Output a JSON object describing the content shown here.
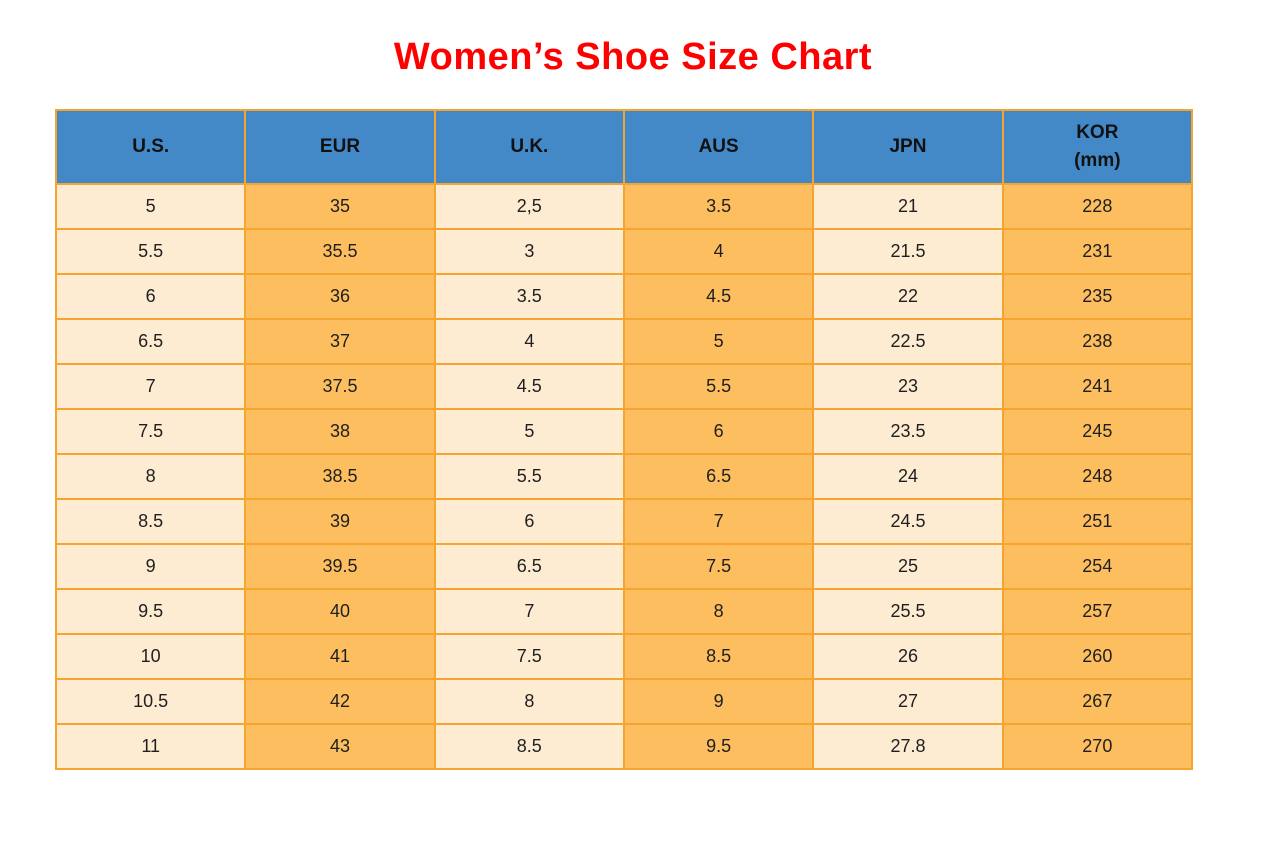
{
  "title": {
    "text": "Women’s Shoe Size Chart",
    "color": "#FF0000"
  },
  "chart_data": {
    "type": "table",
    "title": "Women’s Shoe Size Chart",
    "columns": [
      "U.S.",
      "EUR",
      "U.K.",
      "AUS",
      "JPN",
      "KOR (mm)"
    ],
    "rows": [
      [
        "5",
        "35",
        "2,5",
        "3.5",
        "21",
        "228"
      ],
      [
        "5.5",
        "35.5",
        "3",
        "4",
        "21.5",
        "231"
      ],
      [
        "6",
        "36",
        "3.5",
        "4.5",
        "22",
        "235"
      ],
      [
        "6.5",
        "37",
        "4",
        "5",
        "22.5",
        "238"
      ],
      [
        "7",
        "37.5",
        "4.5",
        "5.5",
        "23",
        "241"
      ],
      [
        "7.5",
        "38",
        "5",
        "6",
        "23.5",
        "245"
      ],
      [
        "8",
        "38.5",
        "5.5",
        "6.5",
        "24",
        "248"
      ],
      [
        "8.5",
        "39",
        "6",
        "7",
        "24.5",
        "251"
      ],
      [
        "9",
        "39.5",
        "6.5",
        "7.5",
        "25",
        "254"
      ],
      [
        "9.5",
        "40",
        "7",
        "8",
        "25.5",
        "257"
      ],
      [
        "10",
        "41",
        "7.5",
        "8.5",
        "26",
        "260"
      ],
      [
        "10.5",
        "42",
        "8",
        "9",
        "27",
        "267"
      ],
      [
        "11",
        "43",
        "8.5",
        "9.5",
        "27.8",
        "270"
      ]
    ]
  },
  "table": {
    "headers": [
      {
        "label": "U.S."
      },
      {
        "label": "EUR"
      },
      {
        "label": "U.K."
      },
      {
        "label": "AUS"
      },
      {
        "label": "JPN"
      },
      {
        "label": "KOR",
        "sublabel": "(mm)"
      }
    ],
    "column_styles": [
      "cream",
      "orange",
      "cream",
      "orange",
      "cream",
      "orange"
    ],
    "colors": {
      "header_bg": "#4389C7",
      "cream": "#FDEBD2",
      "orange": "#FCBE5E",
      "border": "#F5A52F",
      "text": "#1F1F1F"
    }
  }
}
